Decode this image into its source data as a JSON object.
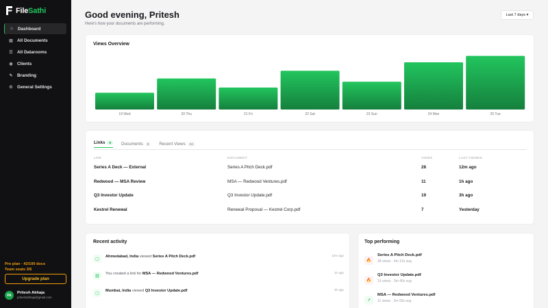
{
  "brand": {
    "name_a": "File",
    "name_b": "Sathi"
  },
  "nav": [
    {
      "label": "Dashboard",
      "icon": "home-icon",
      "glyph": "⌂",
      "active": true
    },
    {
      "label": "All Documents",
      "icon": "documents-icon",
      "glyph": "▤",
      "active": false
    },
    {
      "label": "All Datarooms",
      "icon": "datarooms-icon",
      "glyph": "☰",
      "active": false
    },
    {
      "label": "Clients",
      "icon": "clients-icon",
      "glyph": "◉",
      "active": false
    },
    {
      "label": "Branding",
      "icon": "brush-icon",
      "glyph": "✎",
      "active": false
    },
    {
      "label": "General Settings",
      "icon": "gear-icon",
      "glyph": "⚙",
      "active": false
    }
  ],
  "plan": {
    "line1": "Pro plan · 42/100 docs",
    "line2": "Team seats 3/5",
    "upgrade_label": "Upgrade plan"
  },
  "user": {
    "initials": "PA",
    "name": "Pritesh Akhaja",
    "email": "priteshakhaja@gmail.com"
  },
  "header": {
    "greeting": "Good evening, Pritesh",
    "subtitle": "Here's how your documents are performing.",
    "range_label": "Last 7 days ▾"
  },
  "chart_card": {
    "title": "Views Overview"
  },
  "chart_data": {
    "type": "bar",
    "title": "Views Overview",
    "categories": [
      "19 Wed",
      "20 Thu",
      "21 Fri",
      "22 Sat",
      "23 Sun",
      "24 Mon",
      "25 Tue"
    ],
    "values": [
      26,
      48,
      34,
      60,
      43,
      73,
      83
    ],
    "ylim": [
      0,
      90
    ],
    "grid": false,
    "colors": {
      "top": "#22c55e",
      "bottom": "#15803d"
    }
  },
  "tabs": [
    {
      "label": "Links",
      "count": "6",
      "active": true
    },
    {
      "label": "Documents",
      "count": "8",
      "active": false
    },
    {
      "label": "Recent Views",
      "count": "24",
      "active": false
    }
  ],
  "table": {
    "headers": {
      "link": "LINK",
      "document": "DOCUMENT",
      "views": "VIEWS",
      "last_viewed": "LAST VIEWED"
    },
    "rows": [
      {
        "link": "Series A Deck — External",
        "document": "Series A Pitch Deck.pdf",
        "views": "28",
        "last": "12m ago"
      },
      {
        "link": "Redwood — MSA Review",
        "document": "MSA — Redwood Ventures.pdf",
        "views": "11",
        "last": "1h ago"
      },
      {
        "link": "Q3 Investor Update",
        "document": "Q3 Investor Update.pdf",
        "views": "19",
        "last": "3h ago"
      },
      {
        "link": "Kestrel Renewal",
        "document": "Renewal Proposal — Kestrel Corp.pdf",
        "views": "7",
        "last": "Yesterday"
      }
    ]
  },
  "activity": {
    "title": "Recent activity",
    "items": [
      {
        "icon": "document-icon",
        "glyph": "▢",
        "actor": "Ahmedabad, India",
        "verb": " viewed ",
        "target": "Series A Pitch Deck.pdf",
        "time": "12m ago"
      },
      {
        "icon": "link-icon",
        "glyph": "⛓",
        "actor": "",
        "verb": "You created a link for ",
        "target": "MSA — Redwood Ventures.pdf",
        "time": "1h ago"
      },
      {
        "icon": "document-icon",
        "glyph": "▢",
        "actor": "Mumbai, India",
        "verb": " viewed ",
        "target": "Q3 Investor Update.pdf",
        "time": "3h ago"
      }
    ]
  },
  "top_performing": {
    "title": "Top performing",
    "items": [
      {
        "icon": "fire-icon",
        "glyph": "🔥",
        "style": "red",
        "name": "Series A Pitch Deck.pdf",
        "meta": "28 views · 4m 12s avg"
      },
      {
        "icon": "fire-icon",
        "glyph": "🔥",
        "style": "red",
        "name": "Q3 Investor Update.pdf",
        "meta": "19 views · 3m 40s avg"
      },
      {
        "icon": "trend-icon",
        "glyph": "↗",
        "style": "green",
        "name": "MSA — Redwood Ventures.pdf",
        "meta": "11 views · 2m 05s avg"
      }
    ]
  }
}
